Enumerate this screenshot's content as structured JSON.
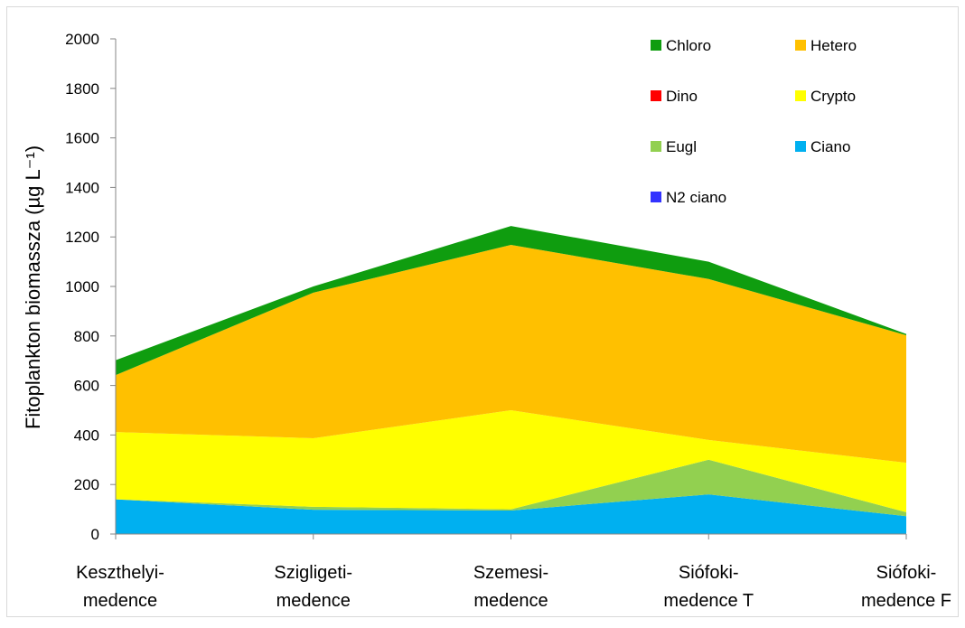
{
  "chart_data": {
    "type": "stacked-area",
    "ylabel": "Fitoplankton biomassza (µg L⁻¹)",
    "categories": [
      [
        "Keszthelyi-",
        "medence"
      ],
      [
        "Szigligeti-",
        "medence"
      ],
      [
        "Szemesi-",
        "medence"
      ],
      [
        "Siófoki-",
        "medence T"
      ],
      [
        "Siófoki-",
        "medence F"
      ]
    ],
    "ylim": [
      0,
      2000
    ],
    "yticks": [
      0,
      200,
      400,
      600,
      800,
      1000,
      1200,
      1400,
      1600,
      1800,
      2000
    ],
    "series": [
      {
        "name": "Chloro",
        "color": "#0f9d0f",
        "values": [
          60,
          25,
          76,
          70,
          5
        ]
      },
      {
        "name": "Hetero",
        "color": "#ffc000",
        "values": [
          230,
          588,
          668,
          650,
          515
        ]
      },
      {
        "name": "Dino",
        "color": "#ff0000",
        "values": [
          0,
          0,
          0,
          0,
          0
        ]
      },
      {
        "name": "Crypto",
        "color": "#ffff00",
        "values": [
          272,
          277,
          400,
          80,
          200
        ]
      },
      {
        "name": "Eugl",
        "color": "#92d050",
        "values": [
          0,
          12,
          5,
          140,
          16
        ]
      },
      {
        "name": "Ciano",
        "color": "#00b0f0",
        "values": [
          140,
          98,
          95,
          160,
          72
        ]
      },
      {
        "name": "N2 ciano",
        "color": "#3333ff",
        "values": [
          0,
          0,
          0,
          0,
          0
        ]
      }
    ]
  }
}
